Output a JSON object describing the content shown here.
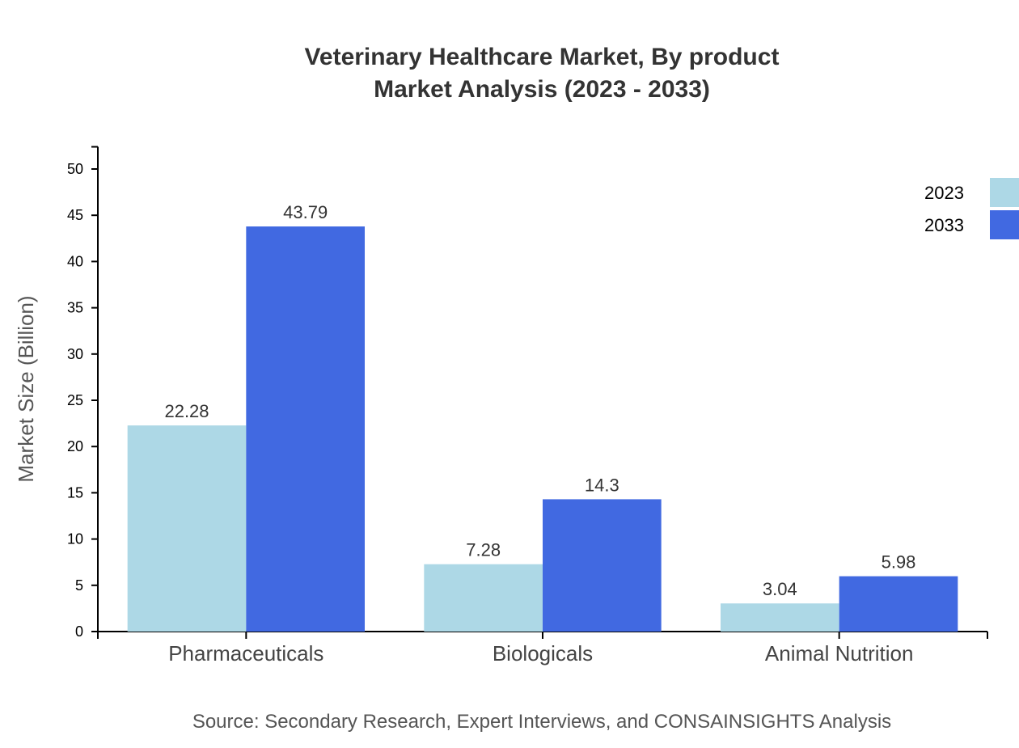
{
  "chart_data": {
    "type": "bar",
    "title": "Veterinary Healthcare Market, By product",
    "subtitle": "Market Analysis (2023 - 2033)",
    "xlabel": "",
    "ylabel": "Market Size (Billion)",
    "ylim": [
      0,
      52.4
    ],
    "yticks": [
      0,
      5,
      10,
      15,
      20,
      25,
      30,
      35,
      40,
      45,
      50
    ],
    "categories": [
      "Pharmaceuticals",
      "Biologicals",
      "Animal Nutrition"
    ],
    "series": [
      {
        "name": "2023",
        "color": "#add8e6",
        "values": [
          22.28,
          7.28,
          3.04
        ]
      },
      {
        "name": "2033",
        "color": "#4169e1",
        "values": [
          43.79,
          14.3,
          5.98
        ]
      }
    ],
    "grid": false,
    "legend_position": "top-right",
    "source": "Source: Secondary Research, Expert Interviews, and CONSAINSIGHTS Analysis"
  }
}
